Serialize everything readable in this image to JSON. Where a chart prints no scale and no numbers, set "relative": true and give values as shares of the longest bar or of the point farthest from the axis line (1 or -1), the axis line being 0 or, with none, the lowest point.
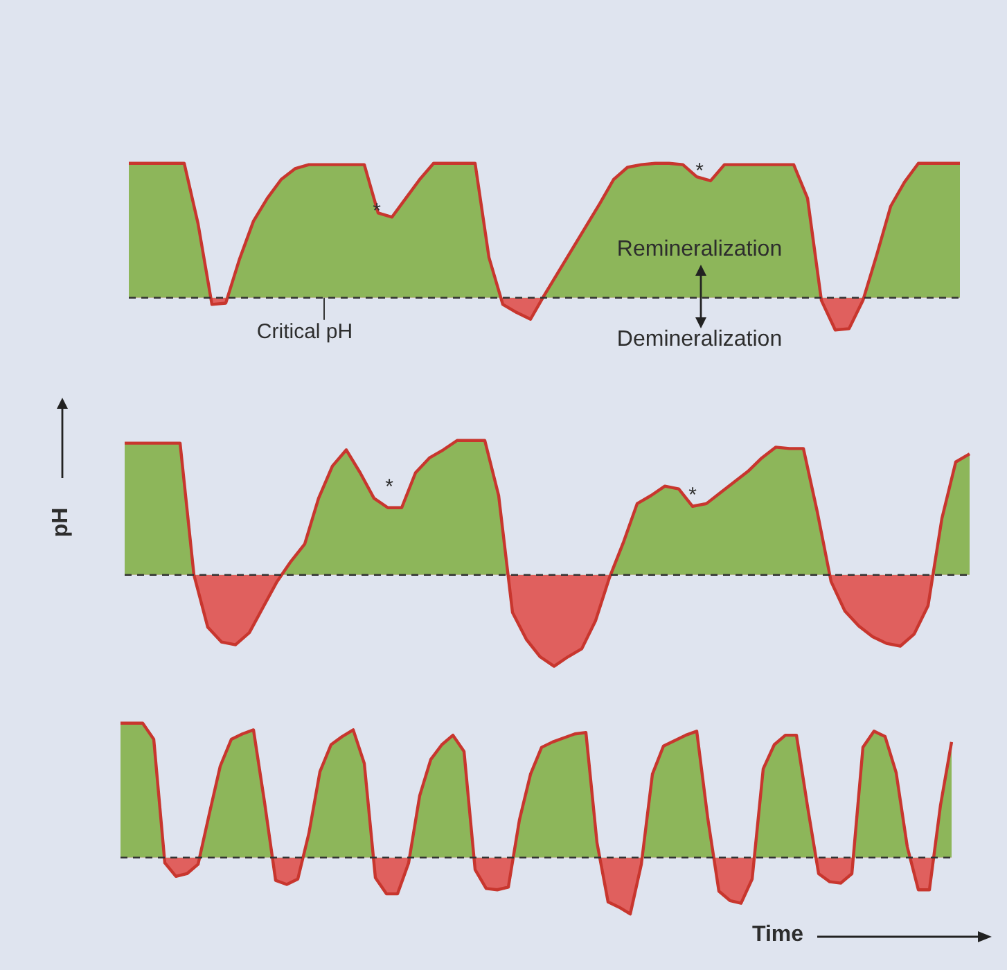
{
  "chart_data": [
    {
      "type": "area",
      "relative": true,
      "marker": "none",
      "categories": [
        null,
        null,
        null,
        null,
        null,
        null,
        null,
        null,
        null,
        null,
        null,
        null,
        null,
        null,
        null,
        null,
        null,
        null,
        null,
        null,
        null,
        null,
        null,
        null,
        null,
        null,
        null,
        null,
        null,
        null,
        null,
        null,
        null,
        null,
        null,
        null,
        null,
        null,
        null,
        null,
        null,
        null,
        null,
        null,
        null,
        null,
        null,
        null,
        null,
        null,
        null,
        null,
        null,
        null,
        null,
        null,
        null,
        null,
        null,
        null,
        null
      ],
      "series": [
        {
          "color": "#8db65a",
          "values": [
            1,
            1,
            1,
            1,
            1,
            0.55,
            -0.05,
            -0.04,
            0.29,
            0.57,
            0.74,
            0.88,
            0.96,
            0.99,
            0.99,
            0.99,
            0.99,
            0.99,
            0.63,
            0.6,
            0.74,
            0.88,
            1,
            1,
            1,
            1,
            0.3,
            -0.05,
            -0.11,
            -0.16,
            0.02,
            0.19,
            0.36,
            0.53,
            0.7,
            0.88,
            0.97,
            0.99,
            1,
            1,
            0.99,
            0.9,
            0.87,
            0.99,
            0.99,
            0.99,
            0.99,
            0.99,
            0.99,
            0.74,
            -0.02,
            -0.24,
            -0.23,
            -0.02,
            0.32,
            0.68,
            0.86,
            1,
            1,
            1,
            1
          ]
        }
      ],
      "ref_lines": [
        {
          "axis": "y",
          "value": 0,
          "label": "Critical pH",
          "color": "#333333",
          "line_style": "dashed"
        }
      ],
      "annotations": [
        "*",
        "*",
        "Remineralization",
        "Demineralization"
      ]
    },
    {
      "type": "area",
      "relative": true,
      "marker": "none",
      "ylabel": "pH",
      "categories": [
        null,
        null,
        null,
        null,
        null,
        null,
        null,
        null,
        null,
        null,
        null,
        null,
        null,
        null,
        null,
        null,
        null,
        null,
        null,
        null,
        null,
        null,
        null,
        null,
        null,
        null,
        null,
        null,
        null,
        null,
        null,
        null,
        null,
        null,
        null,
        null,
        null,
        null,
        null,
        null,
        null,
        null,
        null,
        null,
        null,
        null,
        null,
        null,
        null,
        null,
        null,
        null,
        null,
        null,
        null,
        null,
        null,
        null,
        null,
        null,
        null,
        null
      ],
      "series": [
        {
          "color": "#8db65a",
          "values": [
            0.98,
            0.98,
            0.98,
            0.98,
            0.98,
            0,
            -0.39,
            -0.5,
            -0.52,
            -0.43,
            -0.24,
            -0.05,
            0.1,
            0.23,
            0.57,
            0.81,
            0.93,
            0.76,
            0.57,
            0.5,
            0.5,
            0.76,
            0.87,
            0.93,
            1,
            1,
            1,
            0.59,
            -0.28,
            -0.48,
            -0.61,
            -0.68,
            -0.61,
            -0.55,
            -0.34,
            -0.02,
            0.24,
            0.53,
            0.59,
            0.66,
            0.64,
            0.51,
            0.53,
            0.61,
            0.69,
            0.77,
            0.87,
            0.95,
            0.94,
            0.94,
            0.47,
            -0.05,
            -0.27,
            -0.38,
            -0.46,
            -0.51,
            -0.53,
            -0.44,
            -0.23,
            0.42,
            0.84,
            0.9
          ]
        }
      ],
      "ref_lines": [
        {
          "axis": "y",
          "value": 0,
          "color": "#333333",
          "line_style": "dashed"
        }
      ],
      "annotations": [
        "*",
        "*"
      ]
    },
    {
      "type": "area",
      "relative": true,
      "marker": "none",
      "xlabel": "Time",
      "categories": [
        null,
        null,
        null,
        null,
        null,
        null,
        null,
        null,
        null,
        null,
        null,
        null,
        null,
        null,
        null,
        null,
        null,
        null,
        null,
        null,
        null,
        null,
        null,
        null,
        null,
        null,
        null,
        null,
        null,
        null,
        null,
        null,
        null,
        null,
        null,
        null,
        null,
        null,
        null,
        null,
        null,
        null,
        null,
        null,
        null,
        null,
        null,
        null,
        null,
        null,
        null,
        null,
        null,
        null,
        null,
        null,
        null,
        null,
        null,
        null,
        null,
        null,
        null,
        null,
        null,
        null,
        null,
        null,
        null,
        null,
        null,
        null,
        null,
        null,
        null,
        null
      ],
      "series": [
        {
          "color": "#8db65a",
          "values": [
            1,
            1,
            1,
            0.88,
            -0.04,
            -0.14,
            -0.12,
            -0.05,
            0.32,
            0.68,
            0.88,
            0.92,
            0.95,
            0.41,
            -0.17,
            -0.2,
            -0.16,
            0.18,
            0.64,
            0.84,
            0.9,
            0.95,
            0.7,
            -0.15,
            -0.27,
            -0.27,
            -0.04,
            0.46,
            0.73,
            0.84,
            0.91,
            0.79,
            -0.09,
            -0.23,
            -0.24,
            -0.22,
            0.28,
            0.62,
            0.82,
            0.86,
            0.89,
            0.92,
            0.93,
            0.11,
            -0.33,
            -0.37,
            -0.42,
            -0.05,
            0.62,
            0.83,
            0.87,
            0.91,
            0.94,
            0.29,
            -0.25,
            -0.32,
            -0.34,
            -0.16,
            0.66,
            0.84,
            0.91,
            0.91,
            0.38,
            -0.12,
            -0.18,
            -0.19,
            -0.12,
            0.82,
            0.94,
            0.9,
            0.63,
            0.08,
            -0.24,
            -0.24,
            0.39,
            0.86
          ]
        }
      ],
      "ref_lines": [
        {
          "axis": "y",
          "value": 0,
          "color": "#333333",
          "line_style": "dashed"
        }
      ]
    }
  ]
}
